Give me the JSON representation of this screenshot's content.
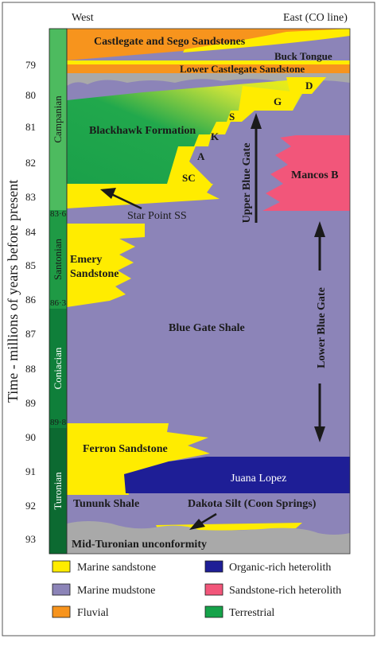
{
  "header": {
    "west": "West",
    "east": "East (CO line)"
  },
  "y_axis": {
    "title": "Time - millions of years before present",
    "ticks": [
      "79",
      "80",
      "81",
      "82",
      "83",
      "84",
      "85",
      "86",
      "87",
      "88",
      "89",
      "90",
      "91",
      "92",
      "93"
    ]
  },
  "stages": [
    {
      "name": "Campanian",
      "color": "#4dbb5f"
    },
    {
      "name": "Santonian",
      "color": "#1f9a45"
    },
    {
      "name": "Coniacian",
      "color": "#0f7f3a"
    },
    {
      "name": "Turonian",
      "color": "#0c6a31"
    }
  ],
  "boundaries": [
    "83·6",
    "86·3",
    "89·8"
  ],
  "units": {
    "castlegate": "Castlegate and Sego  Sandstones",
    "buck_tongue": "Buck Tongue",
    "lower_castlegate": "Lower Castlegate Sandstone",
    "d": "D",
    "g": "G",
    "s": "S",
    "k": "K",
    "a": "A",
    "sc": "SC",
    "blackhawk": "Blackhawk Formation",
    "mancos_b": "Mancos B",
    "upper_blue_gate": "Upper Blue Gate",
    "lower_blue_gate": "Lower Blue Gate",
    "star_point": "Star Point SS",
    "emery_1": "Emery",
    "emery_2": "Sandstone",
    "blue_gate_shale": "Blue Gate Shale",
    "ferron": "Ferron Sandstone",
    "juana_lopez": "Juana Lopez",
    "tununk": "Tununk Shale",
    "dakota_silt": "Dakota Silt (Coon Springs)",
    "unconformity": "Mid-Turonian unconformity"
  },
  "legend": [
    {
      "label": "Marine sandstone",
      "color": "#ffec00",
      "icon": "marine-sandstone-swatch"
    },
    {
      "label": "Organic-rich heterolith",
      "color": "#1e1e96",
      "icon": "organic-rich-heterolith-swatch"
    },
    {
      "label": "Marine mudstone",
      "color": "#8c84b8",
      "icon": "marine-mudstone-swatch"
    },
    {
      "label": "Sandstone-rich heterolith",
      "color": "#f2567a",
      "icon": "sandstone-rich-heterolith-swatch"
    },
    {
      "label": "Fluvial",
      "color": "#f7941d",
      "icon": "fluvial-swatch"
    },
    {
      "label": "Terrestrial",
      "color": "#16a34a",
      "icon": "terrestrial-swatch"
    }
  ]
}
